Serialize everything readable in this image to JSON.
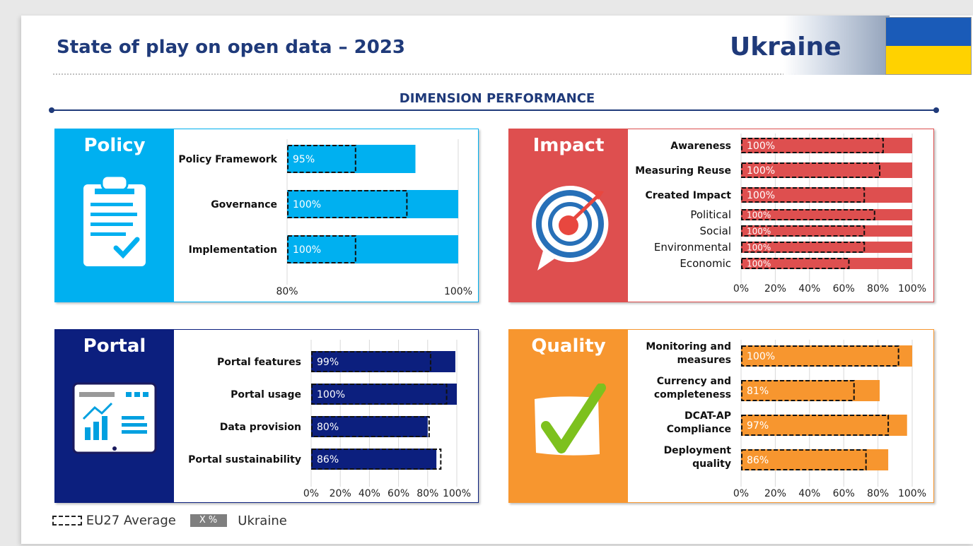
{
  "header": {
    "title": "State of play on open data – 2023",
    "country": "Ukraine",
    "section_title": "DIMENSION PERFORMANCE"
  },
  "legend": {
    "eu_label": "EU27 Average",
    "country_box": "X %",
    "country_label": "Ukraine"
  },
  "colors": {
    "policy": "#00b0f0",
    "impact": "#de4f4f",
    "portal": "#0c1f7e",
    "quality": "#f7962f",
    "navy": "#1f3a7a"
  },
  "icons": [
    "clipboard-check-icon",
    "target-arrow-icon",
    "monitor-chart-icon",
    "checkmark-icon"
  ],
  "panels": {
    "policy": {
      "title": "Policy"
    },
    "impact": {
      "title": "Impact"
    },
    "portal": {
      "title": "Portal"
    },
    "quality": {
      "title": "Quality"
    }
  },
  "chart_data": [
    {
      "id": "policy",
      "type": "bar",
      "orientation": "horizontal",
      "categories": [
        "Policy Framework",
        "Governance",
        "Implementation"
      ],
      "series": [
        {
          "name": "Ukraine",
          "values": [
            95,
            100,
            100
          ]
        },
        {
          "name": "EU27 Average",
          "values": [
            88,
            94,
            88
          ]
        }
      ],
      "data_labels": [
        "95%",
        "100%",
        "100%"
      ],
      "xlim": [
        80,
        100
      ],
      "ticks": [
        "80%",
        "100%"
      ]
    },
    {
      "id": "impact",
      "type": "bar",
      "orientation": "horizontal",
      "categories": [
        "Awareness",
        "Measuring Reuse",
        "Created Impact",
        "Political",
        "Social",
        "Environmental",
        "Economic"
      ],
      "series": [
        {
          "name": "Ukraine",
          "values": [
            100,
            100,
            100,
            100,
            100,
            100,
            100
          ]
        },
        {
          "name": "EU27 Average",
          "values": [
            83,
            81,
            72,
            78,
            72,
            72,
            63
          ]
        }
      ],
      "data_labels": [
        "100%",
        "100%",
        "100%",
        "100%",
        "100%",
        "100%",
        "100%"
      ],
      "xlim": [
        0,
        100
      ],
      "ticks": [
        "0%",
        "20%",
        "40%",
        "60%",
        "80%",
        "100%"
      ]
    },
    {
      "id": "portal",
      "type": "bar",
      "orientation": "horizontal",
      "categories": [
        "Portal features",
        "Portal usage",
        "Data provision",
        "Portal sustainability"
      ],
      "series": [
        {
          "name": "Ukraine",
          "values": [
            99,
            100,
            80,
            86
          ]
        },
        {
          "name": "EU27 Average",
          "values": [
            82,
            93,
            81,
            89
          ]
        }
      ],
      "data_labels": [
        "99%",
        "100%",
        "80%",
        "86%"
      ],
      "xlim": [
        0,
        100
      ],
      "ticks": [
        "0%",
        "20%",
        "40%",
        "60%",
        "80%",
        "100%"
      ]
    },
    {
      "id": "quality",
      "type": "bar",
      "orientation": "horizontal",
      "categories": [
        "Monitoring and measures",
        "Currency and completeness",
        "DCAT-AP Compliance",
        "Deployment quality"
      ],
      "series": [
        {
          "name": "Ukraine",
          "values": [
            100,
            81,
            97,
            86
          ]
        },
        {
          "name": "EU27 Average",
          "values": [
            92,
            66,
            86,
            73
          ]
        }
      ],
      "data_labels": [
        "100%",
        "81%",
        "97%",
        "86%"
      ],
      "xlim": [
        0,
        100
      ],
      "ticks": [
        "0%",
        "20%",
        "40%",
        "60%",
        "80%",
        "100%"
      ]
    }
  ]
}
